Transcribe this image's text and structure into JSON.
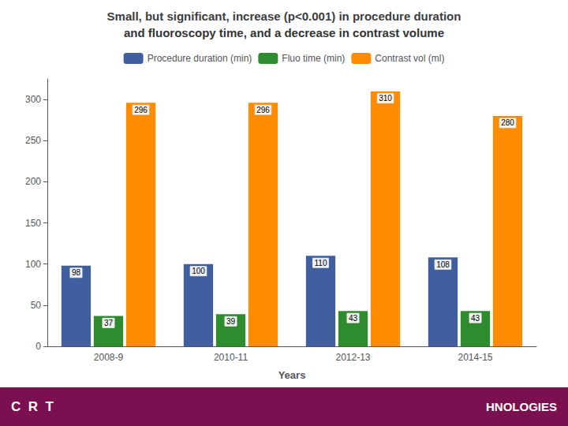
{
  "chart_data": {
    "type": "bar",
    "title": "Small, but significant, increase (p<0.001) in procedure duration",
    "subtitle": "and fluoroscopy time, and a decrease in contrast volume",
    "xlabel": "Years",
    "categories": [
      "2008-9",
      "2010-11",
      "2012-13",
      "2014-15"
    ],
    "series": [
      {
        "name": "Procedure duration (min)",
        "color": "#3f5f9f",
        "values": [
          98,
          100,
          110,
          108
        ]
      },
      {
        "name": "Fluo time (min)",
        "color": "#2e8b2e",
        "values": [
          37,
          39,
          43,
          43
        ]
      },
      {
        "name": "Contrast vol (ml)",
        "color": "#ff8c00",
        "values": [
          296,
          296,
          310,
          280
        ]
      }
    ],
    "ylim": [
      0,
      325
    ],
    "yticks": [
      0,
      50,
      100,
      150,
      200,
      250,
      300
    ],
    "grid": false,
    "legend": "top",
    "data_labels": true,
    "annotations": [
      "C  R  T",
      "HNOLOGIES"
    ]
  }
}
